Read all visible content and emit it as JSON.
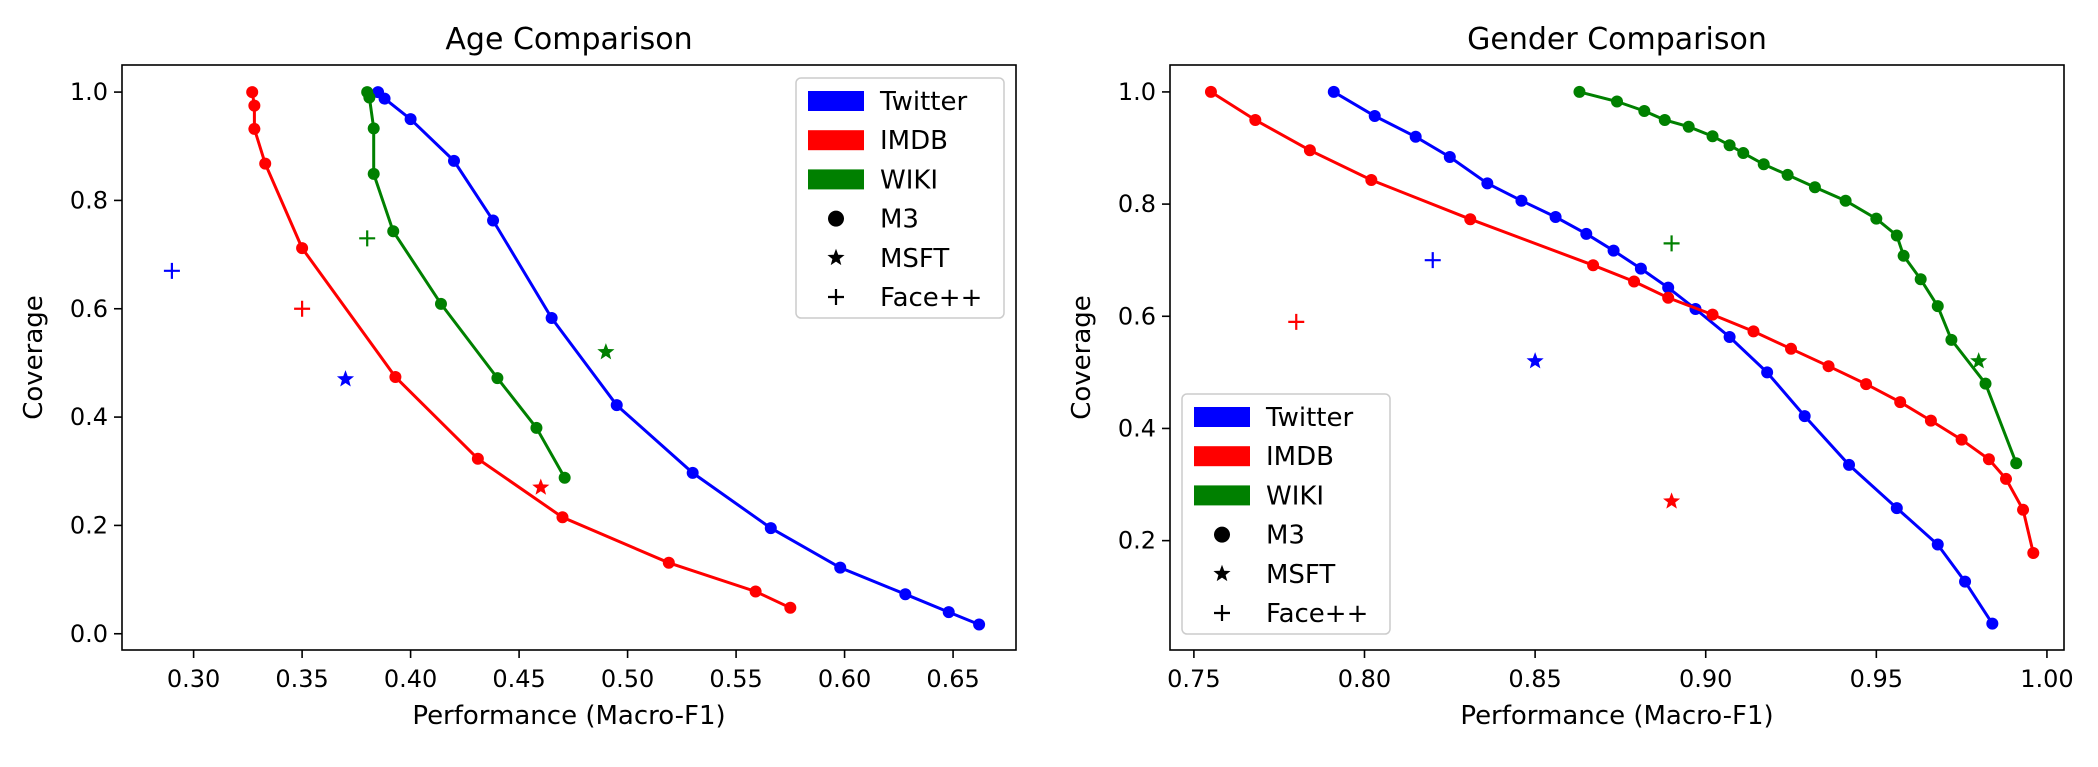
{
  "chart_data": [
    {
      "type": "line",
      "title": "Age Comparison",
      "xlabel": "Performance (Macro-F1)",
      "ylabel": "Coverage",
      "xlim": [
        0.267,
        0.679
      ],
      "ylim": [
        -0.03,
        1.05
      ],
      "xticks": [
        "0.30",
        "0.35",
        "0.40",
        "0.45",
        "0.50",
        "0.55",
        "0.60",
        "0.65"
      ],
      "yticks": [
        "0.0",
        "0.2",
        "0.4",
        "0.6",
        "0.8",
        "1.0"
      ],
      "legend_position": "top-right",
      "series": [
        {
          "name": "Twitter",
          "color": "#0000ff",
          "m3": [
            [
              0.385,
              1.0
            ],
            [
              0.388,
              0.988
            ],
            [
              0.4,
              0.95
            ],
            [
              0.42,
              0.873
            ],
            [
              0.438,
              0.763
            ],
            [
              0.465,
              0.583
            ],
            [
              0.495,
              0.422
            ],
            [
              0.53,
              0.297
            ],
            [
              0.566,
              0.195
            ],
            [
              0.598,
              0.122
            ],
            [
              0.628,
              0.073
            ],
            [
              0.648,
              0.04
            ],
            [
              0.662,
              0.017
            ]
          ],
          "msft": [
            0.37,
            0.47
          ],
          "facepp": [
            0.29,
            0.67
          ]
        },
        {
          "name": "IMDB",
          "color": "#ff0000",
          "m3": [
            [
              0.327,
              1.0
            ],
            [
              0.328,
              0.975
            ],
            [
              0.328,
              0.932
            ],
            [
              0.333,
              0.868
            ],
            [
              0.35,
              0.712
            ],
            [
              0.393,
              0.474
            ],
            [
              0.431,
              0.323
            ],
            [
              0.47,
              0.215
            ],
            [
              0.519,
              0.131
            ],
            [
              0.559,
              0.078
            ],
            [
              0.575,
              0.048
            ]
          ],
          "msft": [
            0.46,
            0.27
          ],
          "facepp": [
            0.35,
            0.6
          ]
        },
        {
          "name": "WIKI",
          "color": "#008000",
          "m3": [
            [
              0.38,
              1.0
            ],
            [
              0.381,
              0.99
            ],
            [
              0.383,
              0.933
            ],
            [
              0.383,
              0.849
            ],
            [
              0.392,
              0.743
            ],
            [
              0.414,
              0.609
            ],
            [
              0.44,
              0.472
            ],
            [
              0.458,
              0.38
            ],
            [
              0.471,
              0.288
            ]
          ],
          "msft": [
            0.49,
            0.52
          ],
          "facepp": [
            0.38,
            0.73
          ]
        }
      ]
    },
    {
      "type": "line",
      "title": "Gender Comparison",
      "xlabel": "Performance (Macro-F1)",
      "ylabel": "Coverage",
      "xlim": [
        0.743,
        1.005
      ],
      "ylim": [
        0.005,
        1.048
      ],
      "xticks": [
        "0.75",
        "0.80",
        "0.85",
        "0.90",
        "0.95",
        "1.00"
      ],
      "yticks": [
        "0.2",
        "0.4",
        "0.6",
        "0.8",
        "1.0"
      ],
      "legend_position": "lower-left",
      "series": [
        {
          "name": "Twitter",
          "color": "#0000ff",
          "m3": [
            [
              0.791,
              1.0
            ],
            [
              0.803,
              0.957
            ],
            [
              0.815,
              0.92
            ],
            [
              0.825,
              0.884
            ],
            [
              0.836,
              0.837
            ],
            [
              0.846,
              0.806
            ],
            [
              0.856,
              0.777
            ],
            [
              0.865,
              0.747
            ],
            [
              0.873,
              0.717
            ],
            [
              0.881,
              0.685
            ],
            [
              0.889,
              0.651
            ],
            [
              0.897,
              0.613
            ],
            [
              0.907,
              0.563
            ],
            [
              0.918,
              0.5
            ],
            [
              0.929,
              0.422
            ],
            [
              0.942,
              0.335
            ],
            [
              0.956,
              0.258
            ],
            [
              0.968,
              0.193
            ],
            [
              0.976,
              0.127
            ],
            [
              0.984,
              0.052
            ]
          ],
          "msft": [
            0.85,
            0.52
          ],
          "facepp": [
            0.82,
            0.7
          ]
        },
        {
          "name": "IMDB",
          "color": "#ff0000",
          "m3": [
            [
              0.755,
              1.0
            ],
            [
              0.768,
              0.95
            ],
            [
              0.784,
              0.896
            ],
            [
              0.802,
              0.843
            ],
            [
              0.831,
              0.773
            ],
            [
              0.867,
              0.691
            ],
            [
              0.879,
              0.662
            ],
            [
              0.889,
              0.633
            ],
            [
              0.902,
              0.603
            ],
            [
              0.914,
              0.573
            ],
            [
              0.925,
              0.542
            ],
            [
              0.936,
              0.511
            ],
            [
              0.947,
              0.479
            ],
            [
              0.957,
              0.447
            ],
            [
              0.966,
              0.414
            ],
            [
              0.975,
              0.38
            ],
            [
              0.983,
              0.345
            ],
            [
              0.988,
              0.31
            ],
            [
              0.993,
              0.255
            ],
            [
              0.996,
              0.178
            ]
          ],
          "msft": [
            0.89,
            0.27
          ],
          "facepp": [
            0.78,
            0.59
          ]
        },
        {
          "name": "WIKI",
          "color": "#008000",
          "m3": [
            [
              0.863,
              1.0
            ],
            [
              0.874,
              0.983
            ],
            [
              0.882,
              0.966
            ],
            [
              0.888,
              0.95
            ],
            [
              0.895,
              0.938
            ],
            [
              0.902,
              0.921
            ],
            [
              0.907,
              0.905
            ],
            [
              0.911,
              0.891
            ],
            [
              0.917,
              0.871
            ],
            [
              0.924,
              0.852
            ],
            [
              0.932,
              0.83
            ],
            [
              0.941,
              0.806
            ],
            [
              0.95,
              0.774
            ],
            [
              0.956,
              0.744
            ],
            [
              0.958,
              0.708
            ],
            [
              0.963,
              0.666
            ],
            [
              0.968,
              0.618
            ],
            [
              0.972,
              0.558
            ],
            [
              0.982,
              0.48
            ],
            [
              0.991,
              0.338
            ]
          ],
          "msft": [
            0.98,
            0.52
          ],
          "facepp": [
            0.89,
            0.73
          ]
        }
      ]
    }
  ],
  "legend": {
    "entries": [
      {
        "label": "Twitter",
        "kind": "patch",
        "color": "#0000ff"
      },
      {
        "label": "IMDB",
        "kind": "patch",
        "color": "#ff0000"
      },
      {
        "label": "WIKI",
        "kind": "patch",
        "color": "#008000"
      },
      {
        "label": "M3",
        "kind": "circle-marker",
        "color": "#000000"
      },
      {
        "label": "MSFT",
        "kind": "star-marker",
        "color": "#000000"
      },
      {
        "label": "Face++",
        "kind": "plus-marker",
        "color": "#000000"
      }
    ]
  }
}
